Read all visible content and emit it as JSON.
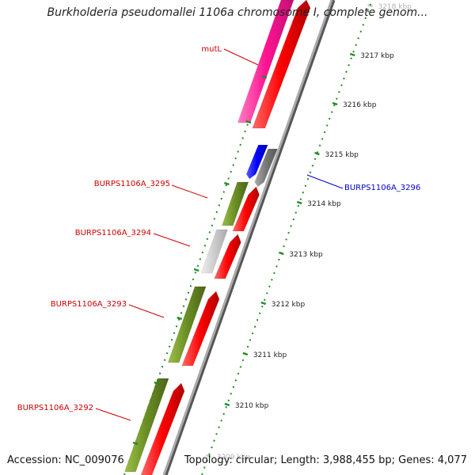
{
  "title": "Burkholderia pseudomallei 1106a chromosome I, complete genom...",
  "footer": {
    "accession": "Accession: NC_009076",
    "summary": "Topology: circular; Length: 3,988,455 bp; Genes: 4,077"
  },
  "ticks": [
    {
      "label": "3218 kbp",
      "faded": true
    },
    {
      "label": "3217 kbp"
    },
    {
      "label": "3216 kbp"
    },
    {
      "label": "3215 kbp"
    },
    {
      "label": "3214 kbp"
    },
    {
      "label": "3213 kbp"
    },
    {
      "label": "3212 kbp"
    },
    {
      "label": "3211 kbp"
    },
    {
      "label": "3210 kbp"
    },
    {
      "label": "3209 kbp",
      "faded": true
    }
  ],
  "gene_labels": [
    {
      "label": "mutL",
      "color": "#cc0000"
    },
    {
      "label": "BURPS1106A_3295",
      "color": "#cc0000"
    },
    {
      "label": "BURPS1106A_3294",
      "color": "#cc0000"
    },
    {
      "label": "BURPS1106A_3293",
      "color": "#cc0000"
    },
    {
      "label": "BURPS1106A_3292",
      "color": "#cc0000"
    },
    {
      "label": "BURPS1106A_3296",
      "color": "#0000cc"
    }
  ],
  "colors": {
    "backbone": "#888888",
    "cds": "#ff0000",
    "gene_olive": "#6b8e23",
    "gene_magenta": "#ff1493",
    "gene_blue": "#0000ff",
    "gene_gray": "#777777",
    "gene_lightgray": "#cccccc",
    "tick": "#228b22"
  }
}
